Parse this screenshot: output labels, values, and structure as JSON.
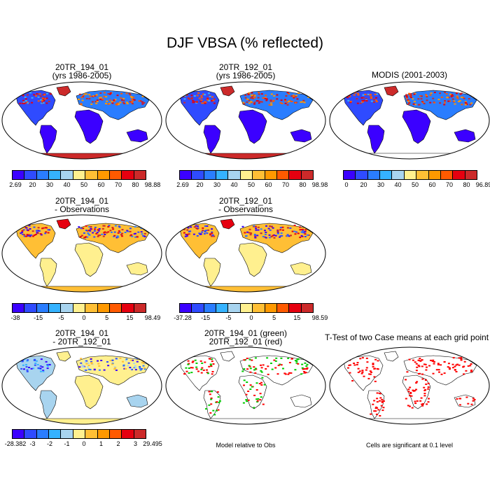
{
  "title": "DJF VBSA (% reflected)",
  "colors": {
    "cbar": [
      "#3b00ff",
      "#2f4bff",
      "#2a7dff",
      "#35b2ff",
      "#a8d4ef",
      "#fff08f",
      "#ffbf35",
      "#ff9900",
      "#ff5a00",
      "#e60010",
      "#cc2a2a"
    ],
    "diff": [
      "#3b00ff",
      "#2f4bff",
      "#2a7dff",
      "#35b2ff",
      "#a8d4ef",
      "#fff08f",
      "#ffbf35",
      "#ff9900",
      "#ff5a00",
      "#e60010",
      "#cc2a2a"
    ],
    "green": "#00cc00",
    "red": "#ff0000"
  },
  "panels": {
    "p1": {
      "title": "20TR_194_01",
      "subtitle": "(yrs 1986-2005)",
      "ticks": [
        "2.69",
        "20",
        "30",
        "40",
        "50",
        "60",
        "70",
        "80",
        "98.88"
      ]
    },
    "p2": {
      "title": "20TR_192_01",
      "subtitle": "(yrs 1986-2005)",
      "ticks": [
        "2.69",
        "20",
        "30",
        "40",
        "50",
        "60",
        "70",
        "80",
        "98.98"
      ]
    },
    "p3": {
      "title": "MODIS (2001-2003)",
      "subtitle": "",
      "ticks": [
        "0",
        "20",
        "30",
        "40",
        "50",
        "60",
        "70",
        "80",
        "96.89"
      ]
    },
    "p4": {
      "title": "20TR_194_01",
      "subtitle": "- Observations",
      "ticks": [
        "-38",
        "-15",
        "-5",
        "0",
        "5",
        "15",
        "98.49"
      ]
    },
    "p5": {
      "title": "20TR_192_01",
      "subtitle": "- Observations",
      "ticks": [
        "-37.28",
        "-15",
        "-5",
        "0",
        "5",
        "15",
        "98.59"
      ]
    },
    "p7": {
      "title": "20TR_194_01",
      "subtitle": "- 20TR_192_01",
      "ticks": [
        "-28.382",
        "-3",
        "-2",
        "-1",
        "0",
        "1",
        "2",
        "3",
        "29.495"
      ]
    },
    "p8": {
      "title": "20TR_194_01 (green)",
      "subtitle": "20TR_192_01 (red)",
      "note": "Model relative to Obs"
    },
    "p9": {
      "title": "T-Test of two Case means at each grid point",
      "note": "Cells are significant at 0.1 level"
    }
  },
  "chart_data": [
    {
      "type": "heatmap",
      "title": "20TR_194_01 (yrs 1986-2005)",
      "colorbar_ticks": [
        2.69,
        20,
        30,
        40,
        50,
        60,
        70,
        80,
        98.88
      ]
    },
    {
      "type": "heatmap",
      "title": "20TR_192_01 (yrs 1986-2005)",
      "colorbar_ticks": [
        2.69,
        20,
        30,
        40,
        50,
        60,
        70,
        80,
        98.98
      ]
    },
    {
      "type": "heatmap",
      "title": "MODIS (2001-2003)",
      "colorbar_ticks": [
        0,
        20,
        30,
        40,
        50,
        60,
        70,
        80,
        96.89
      ]
    },
    {
      "type": "heatmap",
      "title": "20TR_194_01 - Observations",
      "colorbar_ticks": [
        -38,
        -15,
        -5,
        0,
        5,
        15,
        98.49
      ]
    },
    {
      "type": "heatmap",
      "title": "20TR_192_01 - Observations",
      "colorbar_ticks": [
        -37.28,
        -15,
        -5,
        0,
        5,
        15,
        98.59
      ]
    },
    {
      "type": "heatmap",
      "title": "20TR_194_01 - 20TR_192_01",
      "colorbar_ticks": [
        -28.382,
        -3,
        -2,
        -1,
        0,
        1,
        2,
        3,
        29.495
      ]
    },
    {
      "type": "heatmap",
      "title": "20TR_194_01 (green) 20TR_192_01 (red)",
      "annotation": "Model relative to Obs"
    },
    {
      "type": "heatmap",
      "title": "T-Test of two Case means at each grid point",
      "annotation": "Cells are significant at 0.1 level"
    }
  ]
}
